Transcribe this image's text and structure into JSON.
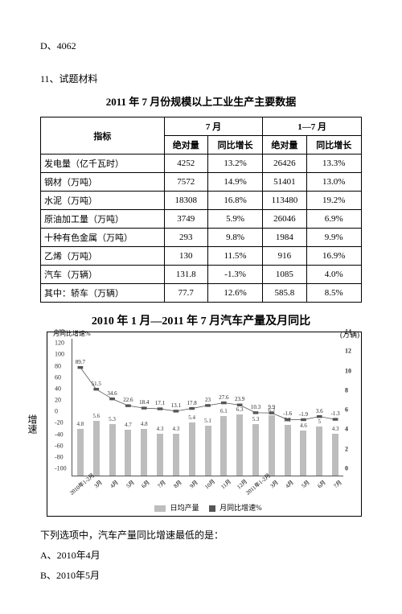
{
  "answer_d": "D、4062",
  "q_number": "11、试题材料",
  "table_title": "2011 年 7 月份规模以上工业生产主要数据",
  "table": {
    "col_group_left": "7 月",
    "col_group_right": "1—7 月",
    "col_indicator": "指标",
    "col_abs": "绝对量",
    "col_yoy": "同比增长",
    "rows": [
      {
        "name": "发电量（亿千瓦时）",
        "a": "4252",
        "b": "13.2%",
        "c": "26426",
        "d": "13.3%"
      },
      {
        "name": "钢材（万吨）",
        "a": "7572",
        "b": "14.9%",
        "c": "51401",
        "d": "13.0%"
      },
      {
        "name": "水泥（万吨）",
        "a": "18308",
        "b": "16.8%",
        "c": "113480",
        "d": "19.2%"
      },
      {
        "name": "原油加工量（万吨）",
        "a": "3749",
        "b": "5.9%",
        "c": "26046",
        "d": "6.9%"
      },
      {
        "name": "十种有色金属（万吨）",
        "a": "293",
        "b": "9.8%",
        "c": "1984",
        "d": "9.9%"
      },
      {
        "name": "乙烯（万吨）",
        "a": "130",
        "b": "11.5%",
        "c": "916",
        "d": "16.9%"
      },
      {
        "name": "汽车（万辆）",
        "a": "131.8",
        "b": "-1.3%",
        "c": "1085",
        "d": "4.0%"
      },
      {
        "name": "其中：轿车（万辆）",
        "a": "77.7",
        "b": "12.6%",
        "c": "585.8",
        "d": "8.5%"
      }
    ]
  },
  "chart": {
    "title": "2010 年 1 月—2011 年 7 月汽车产量及月同比",
    "left_axis_label": "月同比增速%",
    "right_axis_label": "(万辆)",
    "side_label": "增速",
    "legend_bar": "日均产量",
    "legend_line": "月同比增速%",
    "y_left": {
      "min": -100,
      "max": 140,
      "ticks": [
        -100,
        -80,
        -60,
        -40,
        -20,
        0,
        20,
        40,
        60,
        80,
        100,
        120,
        140
      ]
    },
    "y_right": {
      "min": 0,
      "max": 14,
      "ticks": [
        0,
        2,
        4,
        6,
        8,
        10,
        12,
        14
      ]
    },
    "x_categories": [
      "2010年1-2月",
      "3月",
      "4月",
      "5月",
      "6月",
      "7月",
      "8月",
      "9月",
      "10月",
      "11月",
      "12月",
      "2011年1-2月",
      "3月",
      "4月",
      "5月",
      "6月",
      "7月"
    ],
    "bar_values": [
      4.8,
      5.6,
      5.3,
      4.7,
      4.8,
      4.3,
      4.3,
      5.4,
      5.1,
      6.1,
      6.3,
      5.3,
      6.2,
      5.2,
      4.6,
      5.0,
      4.3
    ],
    "line_values": [
      89.7,
      51.5,
      34.6,
      22.6,
      18.4,
      17.1,
      13.1,
      17.8,
      23.0,
      27.6,
      23.9,
      10.3,
      9.9,
      -1.6,
      -1.9,
      3.6,
      -1.3
    ],
    "colors": {
      "bar": "#bdbdbd",
      "line": "#555",
      "grid": "#aaa",
      "border": "#000"
    }
  },
  "question": "下列选项中，汽车产量同比增速最低的是：",
  "options": {
    "a": "A、2010年4月",
    "b": "B、2010年5月"
  }
}
